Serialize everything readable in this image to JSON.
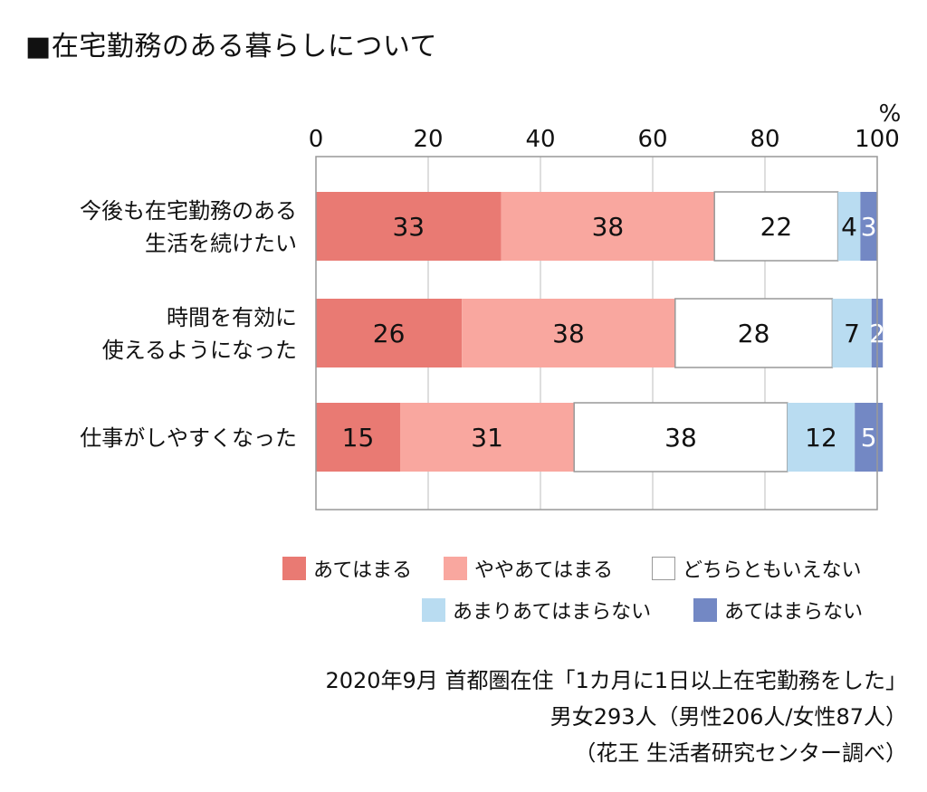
{
  "title": "■在宅勤務のある暮らしについて",
  "chart_data": {
    "type": "bar",
    "orientation": "horizontal",
    "stacked": true,
    "unit": "%",
    "xlim": [
      0,
      100
    ],
    "x_ticks": [
      "0",
      "20",
      "40",
      "60",
      "80",
      "100"
    ],
    "categories": [
      [
        "今後も在宅勤務のある",
        "生活を続けたい"
      ],
      [
        "時間を有効に",
        "使えるようになった"
      ],
      [
        "仕事がしやすくなった"
      ]
    ],
    "series": [
      {
        "name": "あてはまる",
        "color": "#e97a73",
        "values": [
          33,
          26,
          15
        ]
      },
      {
        "name": "ややあてはまる",
        "color": "#f9a79f",
        "values": [
          38,
          38,
          31
        ]
      },
      {
        "name": "どちらともいえない",
        "color": "#ffffff",
        "values": [
          22,
          28,
          38
        ]
      },
      {
        "name": "あまりあてはまらない",
        "color": "#b9dcf1",
        "values": [
          4,
          7,
          12
        ]
      },
      {
        "name": "あてはまらない",
        "color": "#7388c4",
        "values": [
          3,
          2,
          5
        ]
      }
    ],
    "grid": true,
    "legend_position": "bottom-right"
  },
  "notes": [
    "2020年9月 首都圏在住「1カ月に1日以上在宅勤務をした」",
    "男女293人（男性206人/女性87人）",
    "（花王 生活者研究センター調べ）"
  ]
}
